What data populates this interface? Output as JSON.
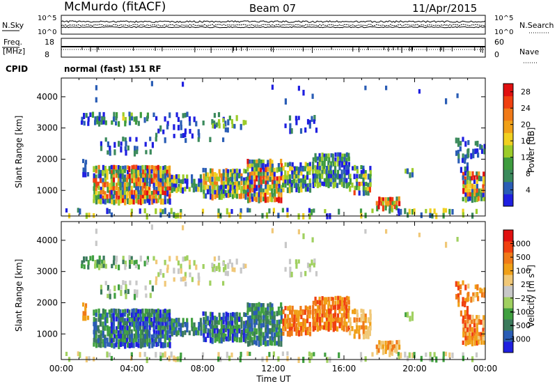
{
  "header": {
    "station": "McMurdo (fitACF)",
    "beam": "Beam 07",
    "date": "11/Apr/2015",
    "cpid_label": "CPID",
    "cpid_value": "normal (fast) 151 RF"
  },
  "noise_panel": {
    "left_label": "N.Sky",
    "right_label": "N.Search",
    "left_ticks": [
      "10^5",
      "10^0"
    ],
    "right_ticks": [
      "10^5",
      "10^0"
    ]
  },
  "freq_panel": {
    "left_label_1": "Freq.",
    "left_label_2": "[MHz]",
    "right_label": "Nave",
    "left_ticks": [
      "18",
      "8"
    ],
    "right_ticks": [
      "60",
      "0"
    ]
  },
  "colors": {
    "power": [
      "#1f1fe0",
      "#2a5db5",
      "#3b8a5c",
      "#3e9c3e",
      "#9ccc2a",
      "#f0d020",
      "#f0a018",
      "#f07a18",
      "#f04010",
      "#e01010"
    ],
    "velocity": [
      "#e01010",
      "#f04010",
      "#f07a18",
      "#f0a018",
      "#f0c878",
      "#c8c8c8",
      "#a0d060",
      "#40a040",
      "#3b7a5c",
      "#2a5db5",
      "#1f1fe0"
    ]
  },
  "chart_data": [
    {
      "type": "heatmap",
      "name": "power",
      "xlabel": "Time UT",
      "ylabel": "Slant Range [km]",
      "x_ticks": [
        "00:00",
        "04:00",
        "08:00",
        "12:00",
        "16:00",
        "20:00",
        "00:00"
      ],
      "x_range_hours": [
        0,
        24
      ],
      "y_ticks": [
        1000,
        2000,
        3000,
        4000
      ],
      "y_range_km": [
        180,
        4600
      ],
      "colorbar_label": "Power [dB]",
      "colorbar_ticks": [
        4,
        8,
        12,
        16,
        20,
        24,
        28
      ],
      "colorbar_range": [
        0,
        30
      ]
    },
    {
      "type": "heatmap",
      "name": "velocity",
      "xlabel": "Time UT",
      "ylabel": "Slant Range [km]",
      "x_ticks": [
        "00:00",
        "04:00",
        "08:00",
        "12:00",
        "16:00",
        "20:00",
        "00:00"
      ],
      "x_range_hours": [
        0,
        24
      ],
      "y_ticks": [
        1000,
        2000,
        3000,
        4000
      ],
      "y_range_km": [
        180,
        4600
      ],
      "colorbar_label": "Velocity [m s^-1]",
      "colorbar_ticks": [
        "1000",
        "500",
        "100",
        "25",
        "−25",
        "−100",
        "−500",
        "−1000"
      ]
    }
  ]
}
